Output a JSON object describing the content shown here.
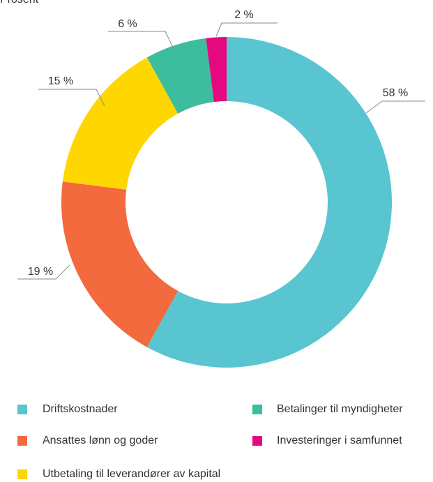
{
  "chart_data": {
    "type": "pie",
    "title": "Prosent",
    "categories": [
      "Driftskostnader",
      "Ansattes lønn og goder",
      "Utbetaling til leverandører av kapital",
      "Betalinger til myndigheter",
      "Investeringer i samfunnet"
    ],
    "values": [
      58,
      19,
      15,
      6,
      2
    ],
    "value_labels": [
      "58 %",
      "19 %",
      "15 %",
      "6 %",
      "2 %"
    ],
    "colors": [
      "#58c5d0",
      "#f26a3d",
      "#ffd700",
      "#3cbd9e",
      "#e5097f"
    ],
    "donut": true,
    "legend": "bottom"
  }
}
